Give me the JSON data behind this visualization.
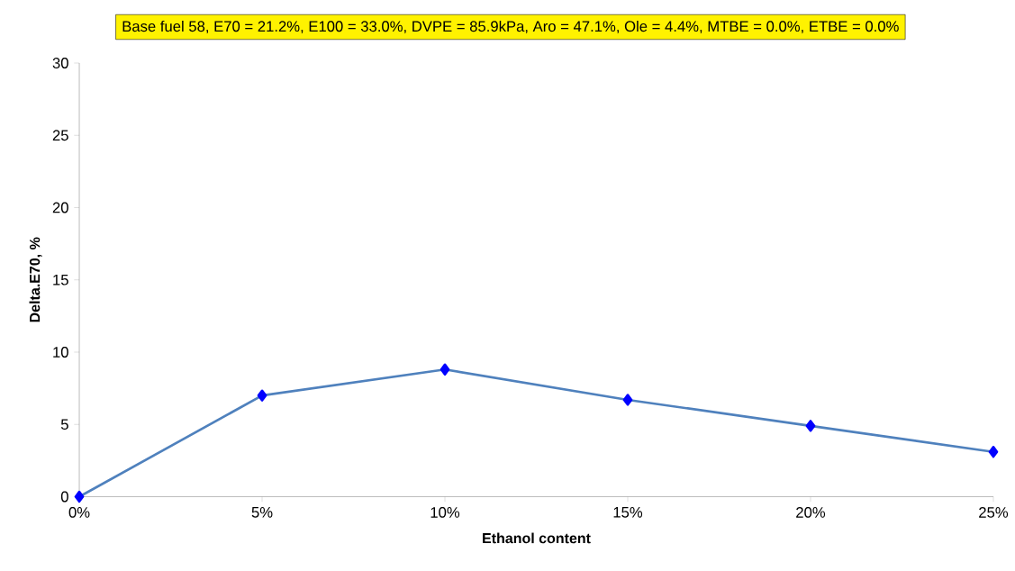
{
  "chart_data": {
    "type": "line",
    "title": "Base fuel 58, E70 = 21.2%, E100 = 33.0%, DVPE = 85.9kPa, Aro = 47.1%, Ole = 4.4%, MTBE = 0.0%, ETBE = 0.0%",
    "xlabel": "Ethanol content",
    "ylabel": "Delta.E70, %",
    "categories": [
      "0%",
      "5%",
      "10%",
      "15%",
      "20%",
      "25%"
    ],
    "series": [
      {
        "color": "#4f81bd",
        "values": [
          0,
          7.0,
          8.8,
          6.7,
          4.9,
          3.1
        ]
      }
    ],
    "ylim": [
      0,
      30
    ],
    "yticks": [
      0,
      5,
      10,
      15,
      20,
      25,
      30
    ],
    "marker": "diamond",
    "line_style": "solid"
  }
}
